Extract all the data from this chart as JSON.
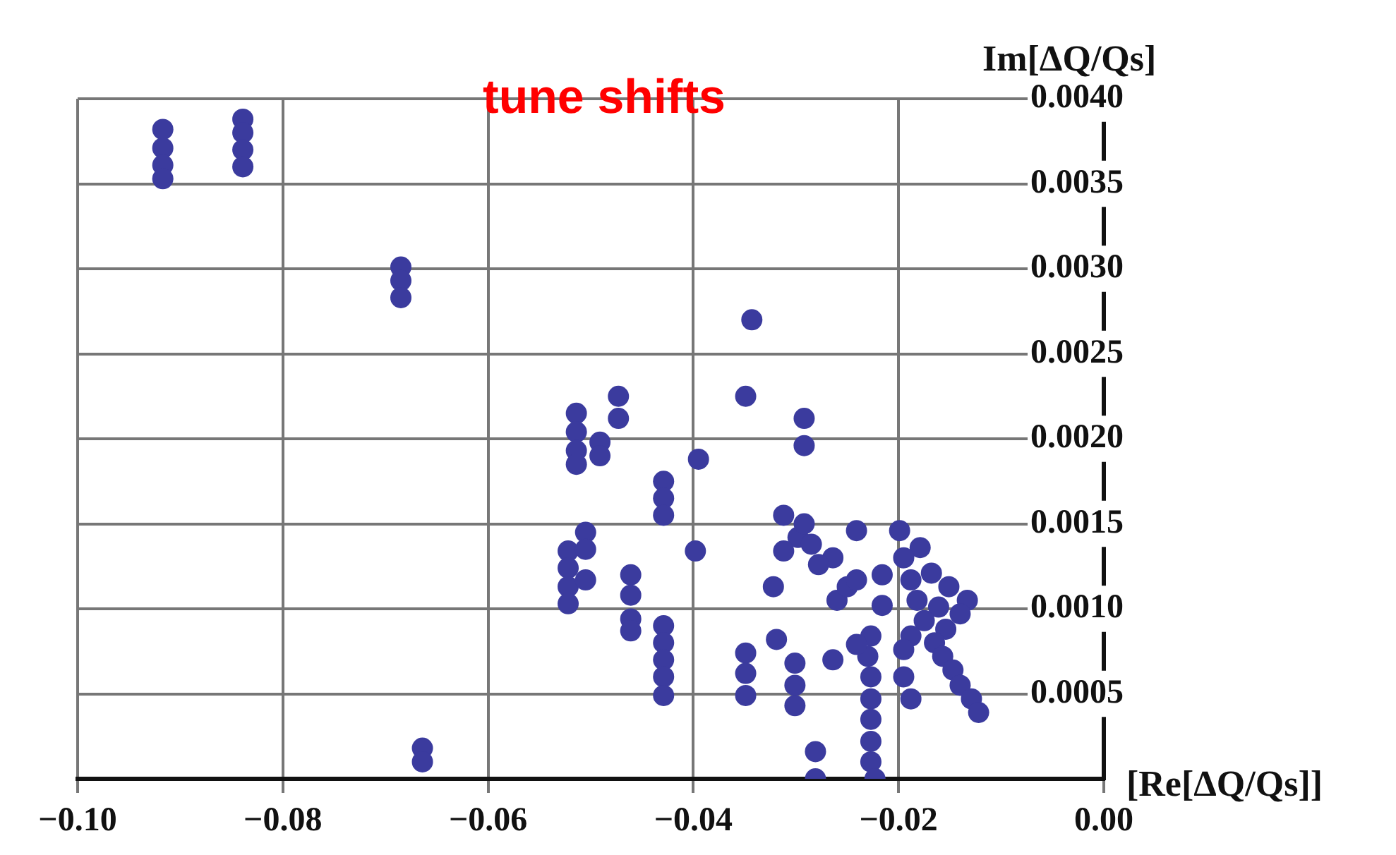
{
  "chart_data": {
    "type": "scatter",
    "title": "tune shifts",
    "xlabel": "[Re[ΔQ/Qs]]",
    "ylabel": "Im[ΔQ/Qs]",
    "xlim": [
      -0.1,
      0
    ],
    "ylim": [
      0,
      0.004
    ],
    "xticks": [
      {
        "value": -0.1,
        "label": "−0.10"
      },
      {
        "value": -0.08,
        "label": "−0.08"
      },
      {
        "value": -0.06,
        "label": "−0.06"
      },
      {
        "value": -0.04,
        "label": "−0.04"
      },
      {
        "value": -0.02,
        "label": "−0.02"
      },
      {
        "value": 0,
        "label": "0.00"
      }
    ],
    "yticks": [
      {
        "value": 0.0005,
        "label": "0.0005"
      },
      {
        "value": 0.001,
        "label": "0.0010"
      },
      {
        "value": 0.0015,
        "label": "0.0015"
      },
      {
        "value": 0.002,
        "label": "0.0020"
      },
      {
        "value": 0.0025,
        "label": "0.0025"
      },
      {
        "value": 0.003,
        "label": "0.0030"
      },
      {
        "value": 0.0035,
        "label": "0.0035"
      },
      {
        "value": 0.004,
        "label": "0.0040"
      }
    ],
    "grid": true,
    "marker": "circle",
    "series": [
      {
        "color": "#3b3b9e",
        "x": [
          -0.0917,
          -0.0917,
          -0.0917,
          -0.0917,
          -0.0839,
          -0.0839,
          -0.0839,
          -0.0839,
          -0.0685,
          -0.0685,
          -0.0685,
          -0.0664,
          -0.0664,
          -0.0514,
          -0.0514,
          -0.0514,
          -0.0514,
          -0.0491,
          -0.0491,
          -0.0473,
          -0.0473,
          -0.0429,
          -0.0429,
          -0.0429,
          -0.0395,
          -0.0398,
          -0.0343,
          -0.0349,
          -0.0292,
          -0.0292,
          -0.0522,
          -0.0522,
          -0.0522,
          -0.0522,
          -0.0505,
          -0.0505,
          -0.0505,
          -0.0461,
          -0.0461,
          -0.0461,
          -0.0461,
          -0.0429,
          -0.0429,
          -0.0429,
          -0.0429,
          -0.0429,
          -0.0349,
          -0.0349,
          -0.0349,
          -0.0301,
          -0.0301,
          -0.0301,
          -0.0281,
          -0.0281,
          -0.0319,
          -0.0322,
          -0.0264,
          -0.0312,
          -0.0298,
          -0.0285,
          -0.0264,
          -0.0312,
          -0.0278,
          -0.0292,
          -0.0241,
          -0.0199,
          -0.0179,
          -0.0195,
          -0.0216,
          -0.026,
          -0.025,
          -0.0241,
          -0.0216,
          -0.0188,
          -0.0168,
          -0.0151,
          -0.0133,
          -0.0182,
          -0.0161,
          -0.014,
          -0.0175,
          -0.0154,
          -0.0188,
          -0.0165,
          -0.0157,
          -0.0147,
          -0.014,
          -0.0129,
          -0.0122,
          -0.0227,
          -0.023,
          -0.0227,
          -0.0227,
          -0.0227,
          -0.0227,
          -0.0227,
          -0.0223,
          -0.0241,
          -0.0195,
          -0.0195,
          -0.0188
        ],
        "values": [
          0.00382,
          0.00371,
          0.00361,
          0.00353,
          0.00388,
          0.0038,
          0.0037,
          0.0036,
          0.00301,
          0.00293,
          0.00283,
          0.00018,
          0.0001,
          0.00215,
          0.00204,
          0.00193,
          0.00185,
          0.00198,
          0.0019,
          0.00225,
          0.00212,
          0.00175,
          0.00165,
          0.00155,
          0.00188,
          0.00134,
          0.0027,
          0.00225,
          0.00212,
          0.00196,
          0.00134,
          0.00124,
          0.00113,
          0.00103,
          0.00145,
          0.00135,
          0.00117,
          0.0012,
          0.00108,
          0.00094,
          0.00087,
          0.0009,
          0.0008,
          0.0007,
          0.0006,
          0.00049,
          0.00074,
          0.00062,
          0.00049,
          0.00068,
          0.00055,
          0.00043,
          0.00016,
          0,
          0.00082,
          0.00113,
          0.0007,
          0.00155,
          0.00142,
          0.00138,
          0.0013,
          0.00134,
          0.00126,
          0.0015,
          0.00146,
          0.00146,
          0.00136,
          0.0013,
          0.0012,
          0.00105,
          0.00113,
          0.00117,
          0.00102,
          0.00117,
          0.00121,
          0.00113,
          0.00105,
          0.00105,
          0.00101,
          0.00097,
          0.00093,
          0.00088,
          0.00084,
          0.0008,
          0.00072,
          0.00064,
          0.00055,
          0.00047,
          0.00039,
          0.00084,
          0.00072,
          0.0006,
          0.00047,
          0.00035,
          0.00022,
          0.0001,
          0,
          0.00079,
          0.00076,
          0.0006,
          0.00047
        ]
      }
    ]
  }
}
